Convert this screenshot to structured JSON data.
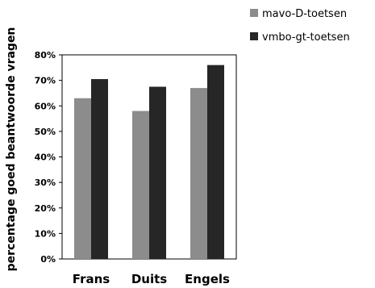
{
  "chart_data": {
    "type": "bar",
    "categories": [
      "Frans",
      "Duits",
      "Engels"
    ],
    "series": [
      {
        "name": "mavo-D-toetsen",
        "values": [
          63,
          58,
          67
        ],
        "color": "#8c8c8c"
      },
      {
        "name": "vmbo-gt-toetsen",
        "values": [
          70.5,
          67.5,
          76
        ],
        "color": "#262626"
      }
    ],
    "ylabel": "percentage goed beantwoorde vragen",
    "ylim": [
      0,
      80
    ],
    "yticks": [
      0,
      10,
      20,
      30,
      40,
      50,
      60,
      70,
      80
    ],
    "ytick_labels": [
      "0%",
      "10%",
      "20%",
      "30%",
      "40%",
      "50%",
      "60%",
      "70%",
      "80%"
    ],
    "grid": false,
    "legend": "top-right"
  }
}
